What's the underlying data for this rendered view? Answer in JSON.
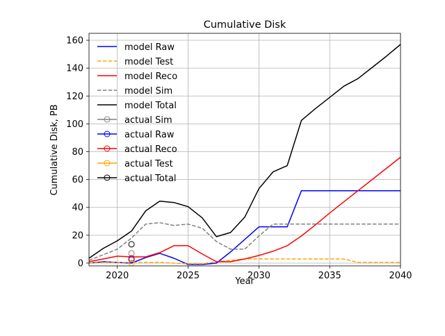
{
  "chart_data": {
    "type": "line",
    "title": "Cumulative Disk",
    "xlabel": "Year",
    "ylabel": "Cumulative Disk, PB",
    "xlim": [
      2018,
      2040
    ],
    "ylim": [
      -2,
      165
    ],
    "xticks": [
      2020,
      2025,
      2030,
      2035,
      2040
    ],
    "yticks": [
      0,
      20,
      40,
      60,
      80,
      100,
      120,
      140,
      160
    ],
    "grid": true,
    "legend_position": "upper-left",
    "series": [
      {
        "name": "model Raw",
        "color": "#0000ff",
        "style": "solid",
        "x": [
          2018,
          2019,
          2020,
          2021,
          2022,
          2023,
          2024,
          2025,
          2026,
          2027,
          2028,
          2029,
          2030,
          2031,
          2032,
          2033,
          2034,
          2035,
          2036,
          2037,
          2038,
          2039,
          2040
        ],
        "y": [
          0,
          1,
          0.5,
          0,
          4,
          7,
          3.5,
          -1,
          -1,
          0,
          8,
          17,
          26,
          26,
          26,
          52,
          52,
          52,
          52,
          52,
          52,
          52,
          52
        ]
      },
      {
        "name": "model Test",
        "color": "#ffa500",
        "style": "dashed",
        "x": [
          2018,
          2019,
          2020,
          2021,
          2022,
          2023,
          2024,
          2025,
          2026,
          2027,
          2028,
          2029,
          2030,
          2031,
          2032,
          2033,
          2034,
          2035,
          2036,
          2037,
          2038,
          2039,
          2040
        ],
        "y": [
          0,
          0.5,
          0.5,
          0.5,
          0.5,
          0.5,
          0,
          -0.5,
          -0.5,
          1,
          2,
          3,
          3,
          3,
          3,
          3,
          3,
          3,
          3,
          0.5,
          0.5,
          0.5,
          0.5
        ]
      },
      {
        "name": "model Reco",
        "color": "#ff0000",
        "style": "solid",
        "x": [
          2018,
          2019,
          2020,
          2021,
          2022,
          2023,
          2024,
          2025,
          2026,
          2027,
          2028,
          2029,
          2030,
          2031,
          2032,
          2033,
          2034,
          2035,
          2036,
          2037,
          2038,
          2039,
          2040
        ],
        "y": [
          1,
          3,
          5,
          4.5,
          4.5,
          7.5,
          12.5,
          12.5,
          6.5,
          1,
          1,
          3,
          5.5,
          8.5,
          12.5,
          19.5,
          27.5,
          36,
          44,
          52,
          60,
          68,
          76
        ]
      },
      {
        "name": "model Sim",
        "color": "#808080",
        "style": "dashed",
        "x": [
          2018,
          2019,
          2020,
          2021,
          2022,
          2023,
          2024,
          2025,
          2026,
          2027,
          2028,
          2029,
          2030,
          2031,
          2032,
          2033,
          2034,
          2035,
          2036,
          2037,
          2038,
          2039,
          2040
        ],
        "y": [
          2,
          6,
          10,
          18,
          28,
          29,
          27,
          28,
          25,
          15.5,
          10,
          10,
          19.5,
          28,
          28,
          28,
          28,
          28,
          28,
          28,
          28,
          28,
          28
        ]
      },
      {
        "name": "model Total",
        "color": "#000000",
        "style": "solid",
        "x": [
          2018,
          2019,
          2020,
          2021,
          2022,
          2023,
          2024,
          2025,
          2026,
          2027,
          2028,
          2029,
          2030,
          2031,
          2032,
          2033,
          2034,
          2035,
          2036,
          2037,
          2038,
          2039,
          2040
        ],
        "y": [
          3.5,
          10.5,
          16,
          23,
          37.5,
          44.5,
          43.5,
          40.5,
          32.5,
          19,
          22,
          33,
          53.5,
          65.5,
          70,
          102.5,
          111,
          119,
          127,
          132.5,
          140.5,
          148.5,
          157
        ]
      },
      {
        "name": "actual Sim",
        "color": "#808080",
        "marker": "circle",
        "x": [
          2021
        ],
        "y": [
          7
        ]
      },
      {
        "name": "actual Raw",
        "color": "#0000ff",
        "marker": "circle",
        "x": [
          2021
        ],
        "y": [
          2.5
        ]
      },
      {
        "name": "actual Reco",
        "color": "#ff0000",
        "marker": "circle",
        "x": [
          2021
        ],
        "y": [
          3.5
        ]
      },
      {
        "name": "actual Test",
        "color": "#ffa500",
        "marker": "circle",
        "x": [
          2021
        ],
        "y": [
          0
        ]
      },
      {
        "name": "actual Total",
        "color": "#000000",
        "marker": "circle",
        "x": [
          2021
        ],
        "y": [
          13.5
        ]
      }
    ]
  }
}
